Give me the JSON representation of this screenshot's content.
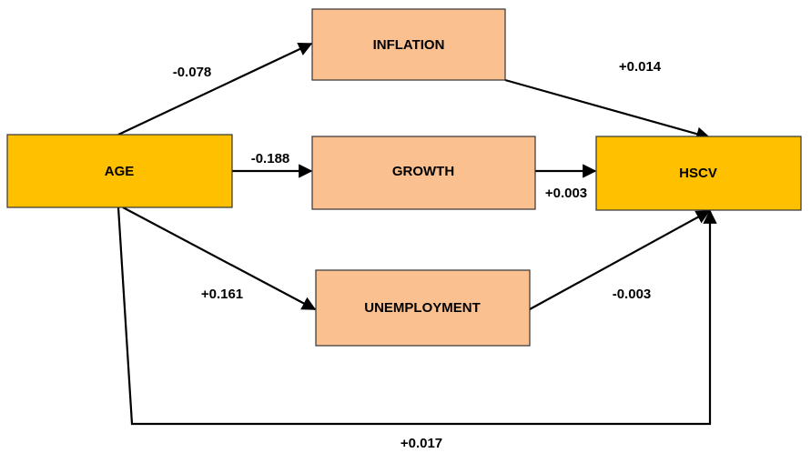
{
  "nodes": [
    {
      "label": "AGE"
    },
    {
      "label": "INFLATION"
    },
    {
      "label": "GROWTH"
    },
    {
      "label": "UNEMPLOYMENT"
    },
    {
      "label": "HSCV"
    }
  ],
  "edges": [
    {
      "from": "AGE",
      "to": "INFLATION",
      "label": "-0.078"
    },
    {
      "from": "INFLATION",
      "to": "HSCV",
      "label": "+0.014"
    },
    {
      "from": "AGE",
      "to": "GROWTH",
      "label": "-0.188"
    },
    {
      "from": "GROWTH",
      "to": "HSCV",
      "label": "+0.003"
    },
    {
      "from": "AGE",
      "to": "UNEMPLOYMENT",
      "label": "+0.161"
    },
    {
      "from": "UNEMPLOYMENT",
      "to": "HSCV",
      "label": "-0.003"
    },
    {
      "from": "AGE",
      "to": "HSCV",
      "label": "+0.017"
    }
  ]
}
